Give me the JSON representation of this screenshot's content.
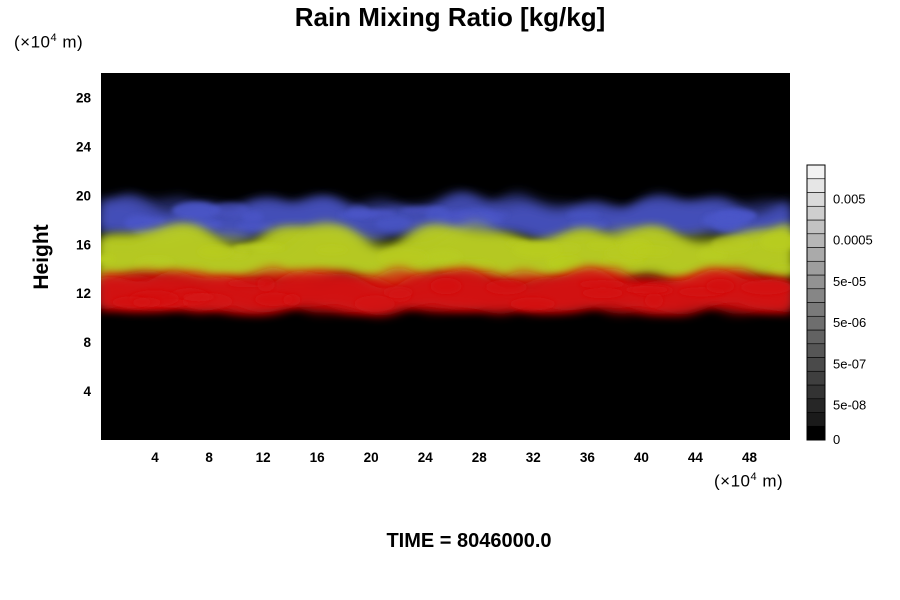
{
  "chart_data": {
    "type": "heatmap",
    "title": "Rain Mixing Ratio [kg/kg]",
    "ylabel": "Height",
    "x_unit": {
      "prefix": "(×10",
      "exp": "4",
      "suffix": " m)"
    },
    "y_unit": {
      "prefix": "(×10",
      "exp": "4",
      "suffix": " m)"
    },
    "xlim": [
      0,
      51
    ],
    "ylim": [
      0,
      30
    ],
    "xticks": [
      4,
      8,
      12,
      16,
      20,
      24,
      28,
      32,
      36,
      40,
      44,
      48
    ],
    "yticks": [
      4,
      8,
      12,
      16,
      20,
      24,
      28
    ],
    "colorbar": {
      "levels": [
        "0",
        "5e-08",
        "5e-07",
        "5e-06",
        "5e-05",
        "0.0005",
        "0.005"
      ],
      "colors": [
        "#000000",
        "#1a1a1a",
        "#262626",
        "#333333",
        "#3f3f3f",
        "#4a4a4a",
        "#565656",
        "#626262",
        "#6e6e6e",
        "#7a7a7a",
        "#868686",
        "#929292",
        "#9e9e9e",
        "#aaaaaa",
        "#b6b6b6",
        "#c2c2c2",
        "#cecece",
        "#dadada",
        "#e6e6e6",
        "#f2f2f2"
      ]
    },
    "bands": [
      {
        "name": "upper",
        "color": "#4a55c8",
        "y_range": [
          16.5,
          19.5
        ]
      },
      {
        "name": "middle",
        "color": "#b8cc20",
        "y_range": [
          13,
          17
        ]
      },
      {
        "name": "lower",
        "color": "#d41010",
        "y_range": [
          10.5,
          13.5
        ]
      }
    ],
    "background": "#000000",
    "time_label": "TIME = 8046000.0"
  }
}
